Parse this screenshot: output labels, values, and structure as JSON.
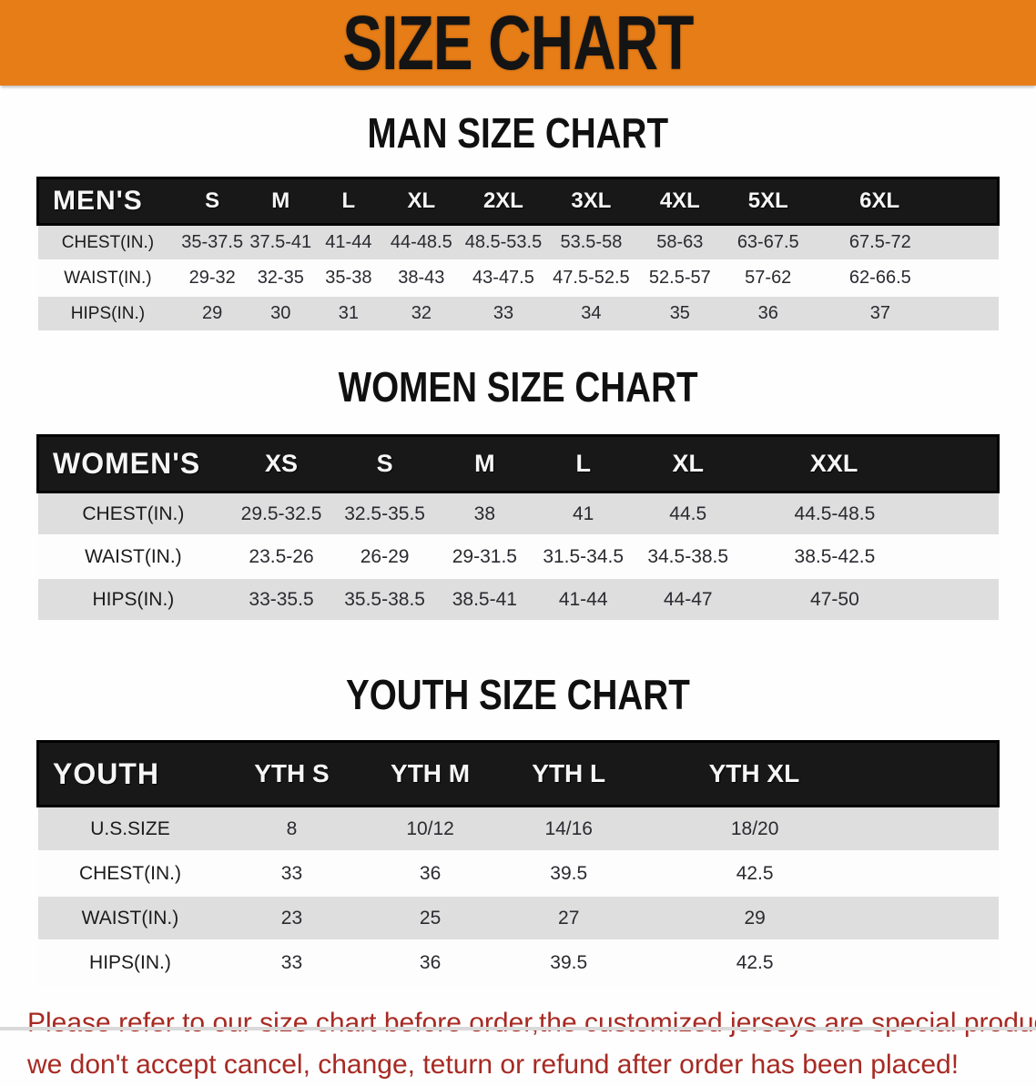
{
  "banner": {
    "title": "SIZE CHART"
  },
  "colors": {
    "banner_bg": "#e67d17",
    "header_bar": "#181818",
    "row_alt": "#dedede",
    "notice_red": "#a72a23"
  },
  "sections": [
    {
      "heading": "MAN SIZE CHART",
      "group_label": "MEN'S",
      "columns": [
        "S",
        "M",
        "L",
        "XL",
        "2XL",
        "3XL",
        "4XL",
        "5XL",
        "6XL"
      ],
      "rows": [
        {
          "label": "CHEST(IN.)",
          "values": [
            "35-37.5",
            "37.5-41",
            "41-44",
            "44-48.5",
            "48.5-53.5",
            "53.5-58",
            "58-63",
            "63-67.5",
            "67.5-72"
          ]
        },
        {
          "label": "WAIST(IN.)",
          "values": [
            "29-32",
            "32-35",
            "35-38",
            "38-43",
            "43-47.5",
            "47.5-52.5",
            "52.5-57",
            "57-62",
            "62-66.5"
          ]
        },
        {
          "label": "HIPS(IN.)",
          "values": [
            "29",
            "30",
            "31",
            "32",
            "33",
            "34",
            "35",
            "36",
            "37"
          ]
        }
      ]
    },
    {
      "heading": "WOMEN SIZE CHART",
      "group_label": "WOMEN'S",
      "columns": [
        "XS",
        "S",
        "M",
        "L",
        "XL",
        "XXL"
      ],
      "rows": [
        {
          "label": "CHEST(IN.)",
          "values": [
            "29.5-32.5",
            "32.5-35.5",
            "38",
            "41",
            "44.5",
            "44.5-48.5"
          ]
        },
        {
          "label": "WAIST(IN.)",
          "values": [
            "23.5-26",
            "26-29",
            "29-31.5",
            "31.5-34.5",
            "34.5-38.5",
            "38.5-42.5"
          ]
        },
        {
          "label": "HIPS(IN.)",
          "values": [
            "33-35.5",
            "35.5-38.5",
            "38.5-41",
            "41-44",
            "44-47",
            "47-50"
          ]
        }
      ]
    },
    {
      "heading": "YOUTH SIZE CHART",
      "group_label": "YOUTH",
      "columns": [
        "YTH S",
        "YTH M",
        "YTH L",
        "YTH XL"
      ],
      "rows": [
        {
          "label": "U.S.SIZE",
          "values": [
            "8",
            "10/12",
            "14/16",
            "18/20"
          ]
        },
        {
          "label": "CHEST(IN.)",
          "values": [
            "33",
            "36",
            "39.5",
            "42.5"
          ]
        },
        {
          "label": "WAIST(IN.)",
          "values": [
            "23",
            "25",
            "27",
            "29"
          ]
        },
        {
          "label": "HIPS(IN.)",
          "values": [
            "33",
            "36",
            "39.5",
            "42.5"
          ]
        }
      ]
    }
  ],
  "notice": {
    "line1": "Please refer to our size chart before order,the customized jerseys are special products,",
    "line2": "we don't accept cancel, change, teturn or refund after order has been placed!"
  }
}
